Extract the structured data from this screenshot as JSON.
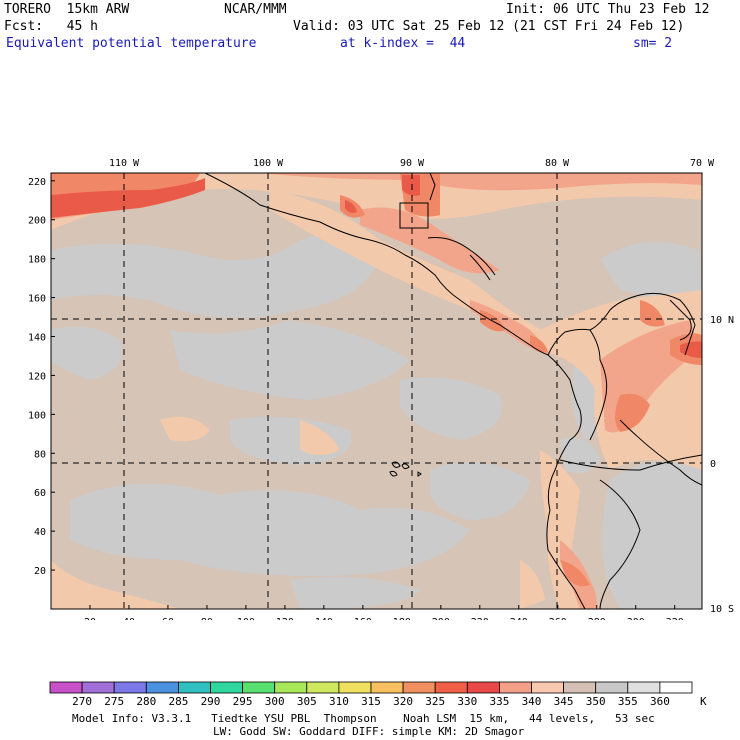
{
  "header": {
    "model": "TORERO  15km ARW",
    "org": "NCAR/MMM",
    "init": "Init: 06 UTC Thu 23 Feb 12",
    "fcst": "Fcst:   45 h",
    "valid": "Valid: 03 UTC Sat 25 Feb 12 (21 CST Fri 24 Feb 12)",
    "field": "Equivalent potential temperature",
    "level": "at k-index =  44",
    "smooth": "sm= 2"
  },
  "map": {
    "lon_labels": [
      "110 W",
      "100 W",
      "90 W",
      "80 W",
      "70 W"
    ],
    "lat_labels": [
      "10 N",
      "0",
      "10 S"
    ],
    "y_ticks": [
      20,
      40,
      60,
      80,
      100,
      120,
      140,
      160,
      180,
      200,
      220
    ],
    "x_ticks": [
      20,
      40,
      60,
      80,
      100,
      120,
      140,
      160,
      180,
      200,
      220,
      240,
      260,
      280,
      300,
      320
    ],
    "colors": {
      "base": "#d6c4b6",
      "gray": "#cbcbcb",
      "light": "#f3c9ab",
      "mid": "#f2a58a",
      "warm": "#f08868",
      "hot": "#ea5a48"
    }
  },
  "legend": {
    "values": [
      "270",
      "275",
      "280",
      "285",
      "290",
      "295",
      "300",
      "305",
      "310",
      "315",
      "320",
      "325",
      "330",
      "335",
      "340",
      "345",
      "350",
      "355",
      "360"
    ],
    "unit": "K",
    "colors": [
      "#c850c8",
      "#a070d8",
      "#7c78e8",
      "#4c90e0",
      "#30c0c0",
      "#30d8a0",
      "#58e070",
      "#a8e858",
      "#d0e860",
      "#f0e060",
      "#f8c060",
      "#f09060",
      "#f06048",
      "#e84848",
      "#f4a088",
      "#f8c8b0",
      "#d4c0b4",
      "#c8c8c8",
      "#e0e0e0",
      "#ffffff"
    ]
  },
  "footer": {
    "line1": "Model Info: V3.3.1   Tiedtke YSU PBL  Thompson    Noah LSM  15 km,   44 levels,   53 sec",
    "line2": "LW: Godd SW: Goddard DIFF: simple KM: 2D Smagor"
  }
}
